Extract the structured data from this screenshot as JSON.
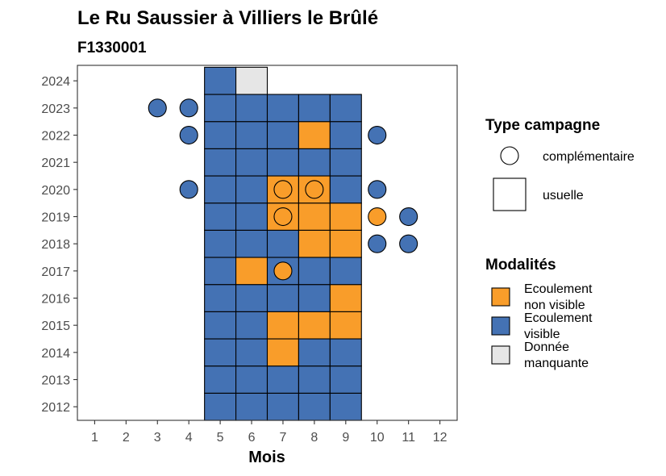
{
  "chart_data": {
    "type": "heatmap",
    "title": "Le Ru Saussier à Villiers le Brûlé",
    "subtitle": "F1330001",
    "xlabel": "Mois",
    "ylabel": "",
    "x_ticks": [
      "1",
      "2",
      "3",
      "4",
      "5",
      "6",
      "7",
      "8",
      "9",
      "10",
      "11",
      "12"
    ],
    "y_ticks": [
      "2012",
      "2013",
      "2014",
      "2015",
      "2016",
      "2017",
      "2018",
      "2019",
      "2020",
      "2021",
      "2022",
      "2023",
      "2024"
    ],
    "grid": false,
    "colors": {
      "non_visible": "#f99d2a",
      "visible": "#4472b4",
      "missing": "#e6e6e6"
    },
    "legend_type": {
      "title": "Type campagne",
      "position": "right",
      "entries": [
        {
          "key": "complementaire",
          "label": "complémentaire"
        },
        {
          "key": "usuelle",
          "label": "usuelle"
        }
      ]
    },
    "legend_modalites": {
      "title": "Modalités",
      "position": "right",
      "entries": [
        {
          "key": "non_visible",
          "line1": "Ecoulement",
          "line2": "non visible"
        },
        {
          "key": "visible",
          "line1": "Ecoulement",
          "line2": "visible"
        },
        {
          "key": "missing",
          "line1": "Donnée",
          "line2": "manquante"
        }
      ]
    },
    "usuelle": [
      {
        "year": 2012,
        "month": 5,
        "m": "visible"
      },
      {
        "year": 2012,
        "month": 6,
        "m": "visible"
      },
      {
        "year": 2012,
        "month": 7,
        "m": "visible"
      },
      {
        "year": 2012,
        "month": 8,
        "m": "visible"
      },
      {
        "year": 2012,
        "month": 9,
        "m": "visible"
      },
      {
        "year": 2013,
        "month": 5,
        "m": "visible"
      },
      {
        "year": 2013,
        "month": 6,
        "m": "visible"
      },
      {
        "year": 2013,
        "month": 7,
        "m": "visible"
      },
      {
        "year": 2013,
        "month": 8,
        "m": "visible"
      },
      {
        "year": 2013,
        "month": 9,
        "m": "visible"
      },
      {
        "year": 2014,
        "month": 5,
        "m": "visible"
      },
      {
        "year": 2014,
        "month": 6,
        "m": "visible"
      },
      {
        "year": 2014,
        "month": 7,
        "m": "non_visible"
      },
      {
        "year": 2014,
        "month": 8,
        "m": "visible"
      },
      {
        "year": 2014,
        "month": 9,
        "m": "visible"
      },
      {
        "year": 2015,
        "month": 5,
        "m": "visible"
      },
      {
        "year": 2015,
        "month": 6,
        "m": "visible"
      },
      {
        "year": 2015,
        "month": 7,
        "m": "non_visible"
      },
      {
        "year": 2015,
        "month": 8,
        "m": "non_visible"
      },
      {
        "year": 2015,
        "month": 9,
        "m": "non_visible"
      },
      {
        "year": 2016,
        "month": 5,
        "m": "visible"
      },
      {
        "year": 2016,
        "month": 6,
        "m": "visible"
      },
      {
        "year": 2016,
        "month": 7,
        "m": "visible"
      },
      {
        "year": 2016,
        "month": 8,
        "m": "visible"
      },
      {
        "year": 2016,
        "month": 9,
        "m": "non_visible"
      },
      {
        "year": 2017,
        "month": 5,
        "m": "visible"
      },
      {
        "year": 2017,
        "month": 6,
        "m": "non_visible"
      },
      {
        "year": 2017,
        "month": 7,
        "m": "visible"
      },
      {
        "year": 2017,
        "month": 8,
        "m": "visible"
      },
      {
        "year": 2017,
        "month": 9,
        "m": "visible"
      },
      {
        "year": 2018,
        "month": 5,
        "m": "visible"
      },
      {
        "year": 2018,
        "month": 6,
        "m": "visible"
      },
      {
        "year": 2018,
        "month": 7,
        "m": "visible"
      },
      {
        "year": 2018,
        "month": 8,
        "m": "non_visible"
      },
      {
        "year": 2018,
        "month": 9,
        "m": "non_visible"
      },
      {
        "year": 2019,
        "month": 5,
        "m": "visible"
      },
      {
        "year": 2019,
        "month": 6,
        "m": "visible"
      },
      {
        "year": 2019,
        "month": 7,
        "m": "non_visible"
      },
      {
        "year": 2019,
        "month": 8,
        "m": "non_visible"
      },
      {
        "year": 2019,
        "month": 9,
        "m": "non_visible"
      },
      {
        "year": 2020,
        "month": 5,
        "m": "visible"
      },
      {
        "year": 2020,
        "month": 6,
        "m": "visible"
      },
      {
        "year": 2020,
        "month": 7,
        "m": "non_visible"
      },
      {
        "year": 2020,
        "month": 8,
        "m": "non_visible"
      },
      {
        "year": 2020,
        "month": 9,
        "m": "visible"
      },
      {
        "year": 2021,
        "month": 5,
        "m": "visible"
      },
      {
        "year": 2021,
        "month": 6,
        "m": "visible"
      },
      {
        "year": 2021,
        "month": 7,
        "m": "visible"
      },
      {
        "year": 2021,
        "month": 8,
        "m": "visible"
      },
      {
        "year": 2021,
        "month": 9,
        "m": "visible"
      },
      {
        "year": 2022,
        "month": 5,
        "m": "visible"
      },
      {
        "year": 2022,
        "month": 6,
        "m": "visible"
      },
      {
        "year": 2022,
        "month": 7,
        "m": "visible"
      },
      {
        "year": 2022,
        "month": 8,
        "m": "non_visible"
      },
      {
        "year": 2022,
        "month": 9,
        "m": "visible"
      },
      {
        "year": 2023,
        "month": 5,
        "m": "visible"
      },
      {
        "year": 2023,
        "month": 6,
        "m": "visible"
      },
      {
        "year": 2023,
        "month": 7,
        "m": "visible"
      },
      {
        "year": 2023,
        "month": 8,
        "m": "visible"
      },
      {
        "year": 2023,
        "month": 9,
        "m": "visible"
      },
      {
        "year": 2024,
        "month": 5,
        "m": "visible"
      },
      {
        "year": 2024,
        "month": 6,
        "m": "missing"
      }
    ],
    "complementaire": [
      {
        "year": 2023,
        "month": 3,
        "m": "visible"
      },
      {
        "year": 2023,
        "month": 4,
        "m": "visible"
      },
      {
        "year": 2022,
        "month": 4,
        "m": "visible"
      },
      {
        "year": 2022,
        "month": 10,
        "m": "visible"
      },
      {
        "year": 2020,
        "month": 4,
        "m": "visible"
      },
      {
        "year": 2020,
        "month": 7,
        "m": "non_visible"
      },
      {
        "year": 2020,
        "month": 8,
        "m": "non_visible"
      },
      {
        "year": 2020,
        "month": 10,
        "m": "visible"
      },
      {
        "year": 2019,
        "month": 7,
        "m": "non_visible"
      },
      {
        "year": 2019,
        "month": 10,
        "m": "non_visible"
      },
      {
        "year": 2019,
        "month": 11,
        "m": "visible"
      },
      {
        "year": 2018,
        "month": 10,
        "m": "visible"
      },
      {
        "year": 2018,
        "month": 11,
        "m": "visible"
      },
      {
        "year": 2017,
        "month": 7,
        "m": "non_visible"
      }
    ]
  }
}
